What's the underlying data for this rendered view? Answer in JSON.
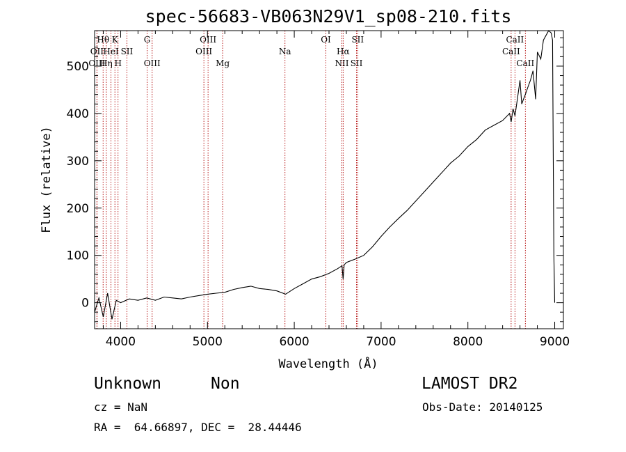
{
  "chart_data": {
    "type": "line",
    "title": "spec-56683-VB063N29V1_sp08-210.fits",
    "xlabel": "Wavelength (Å)",
    "ylabel": "Flux (relative)",
    "xlim": [
      3700,
      9100
    ],
    "ylim": [
      -55,
      575
    ],
    "xticks": [
      4000,
      5000,
      6000,
      7000,
      8000,
      9000
    ],
    "yticks": [
      0,
      100,
      200,
      300,
      400,
      500
    ],
    "grid": false,
    "series": [
      {
        "x": [
          3700,
          3750,
          3800,
          3850,
          3900,
          3950,
          4000,
          4100,
          4200,
          4300,
          4400,
          4500,
          4600,
          4700,
          4800,
          4900,
          5000,
          5100,
          5200,
          5300,
          5400,
          5500,
          5600,
          5700,
          5800,
          5900,
          6000,
          6100,
          6200,
          6300,
          6400,
          6500,
          6550,
          6563,
          6575,
          6600,
          6700,
          6800,
          6900,
          7000,
          7100,
          7200,
          7300,
          7400,
          7500,
          7600,
          7700,
          7800,
          7900,
          8000,
          8100,
          8200,
          8300,
          8400,
          8480,
          8498,
          8520,
          8542,
          8570,
          8600,
          8620,
          8640,
          8662,
          8690,
          8720,
          8750,
          8780,
          8800,
          8840,
          8870,
          8900,
          8930,
          8960,
          8975,
          8990,
          9000
        ],
        "y": [
          -20,
          10,
          -30,
          20,
          -35,
          5,
          0,
          8,
          5,
          10,
          5,
          12,
          10,
          8,
          12,
          15,
          18,
          20,
          22,
          28,
          32,
          35,
          30,
          28,
          25,
          18,
          30,
          40,
          50,
          55,
          62,
          72,
          78,
          50,
          80,
          85,
          92,
          100,
          118,
          140,
          160,
          178,
          195,
          215,
          235,
          255,
          275,
          295,
          310,
          330,
          345,
          365,
          375,
          385,
          400,
          382,
          410,
          395,
          430,
          470,
          420,
          430,
          440,
          455,
          470,
          490,
          430,
          530,
          515,
          555,
          565,
          575,
          570,
          555,
          100,
          0
        ]
      }
    ],
    "lines": [
      {
        "label": "Hθ",
        "x": 3798,
        "row": 1
      },
      {
        "label": "K",
        "x": 3934,
        "row": 1
      },
      {
        "label": "G",
        "x": 4305,
        "row": 1
      },
      {
        "label": "OIII",
        "x": 5007,
        "row": 1
      },
      {
        "label": "OI",
        "x": 6364,
        "row": 1
      },
      {
        "label": "SII",
        "x": 6731,
        "row": 1
      },
      {
        "label": "CaII",
        "x": 8542,
        "row": 1
      },
      {
        "label": "OII",
        "x": 3727,
        "row": 2
      },
      {
        "label": "HeI",
        "x": 3889,
        "row": 2
      },
      {
        "label": "SII",
        "x": 4072,
        "row": 2
      },
      {
        "label": "OIII",
        "x": 4959,
        "row": 2
      },
      {
        "label": "Na",
        "x": 5893,
        "row": 2
      },
      {
        "label": "Hα",
        "x": 6563,
        "row": 2
      },
      {
        "label": "CaII",
        "x": 8498,
        "row": 2
      },
      {
        "label": "OIII",
        "x": 3727,
        "row": 3
      },
      {
        "label": "Hη",
        "x": 3835,
        "row": 3
      },
      {
        "label": "H",
        "x": 3970,
        "row": 3
      },
      {
        "label": "OIII",
        "x": 4363,
        "row": 3
      },
      {
        "label": "Mg",
        "x": 5175,
        "row": 3
      },
      {
        "label": "NII",
        "x": 6548,
        "row": 3
      },
      {
        "label": "SII",
        "x": 6717,
        "row": 3
      },
      {
        "label": "CaII",
        "x": 8662,
        "row": 3
      }
    ],
    "line_color": "#b00000"
  },
  "info": {
    "class": "Unknown",
    "subclass": "Non",
    "survey": "LAMOST DR2",
    "cz": "cz = NaN",
    "obs_date": "Obs-Date: 20140125",
    "radec": "RA =  64.66897, DEC =  28.44446"
  }
}
